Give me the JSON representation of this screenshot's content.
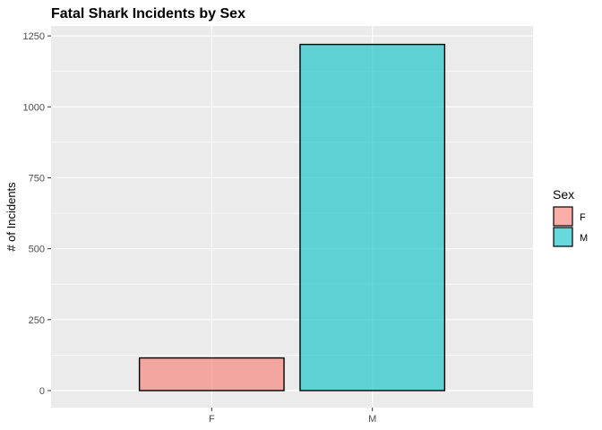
{
  "chart_data": {
    "type": "bar",
    "title": "Fatal Shark Incidents by Sex",
    "xlabel": "",
    "ylabel": "# of Incidents",
    "categories": [
      "F",
      "M"
    ],
    "values": [
      115,
      1220
    ],
    "ylim": [
      -60,
      1285
    ],
    "yticks": [
      0,
      250,
      500,
      750,
      1000,
      1250
    ],
    "grid": true,
    "colors": {
      "F": "#F8766D",
      "M": "#00BFC4"
    },
    "bar_opacity": 0.6,
    "panel_background": "#EBEBEB",
    "legend": {
      "title": "Sex",
      "position": "right",
      "entries": [
        "F",
        "M"
      ]
    }
  }
}
